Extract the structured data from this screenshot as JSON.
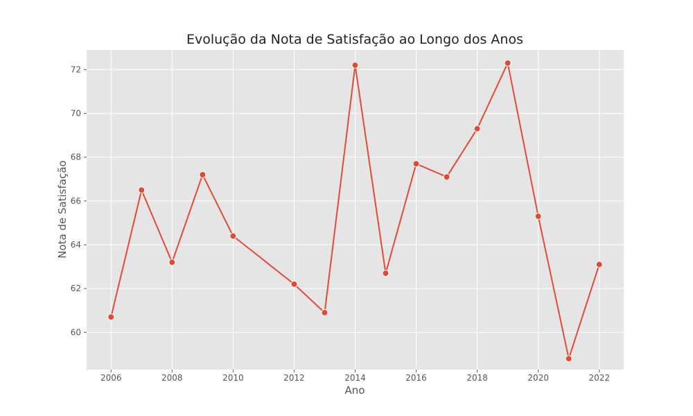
{
  "chart_data": {
    "type": "line",
    "title": "Evolução da Nota de Satisfação ao Longo dos Anos",
    "xlabel": "Ano",
    "ylabel": "Nota de Satisfação",
    "xlim": [
      2005.2,
      2022.8
    ],
    "ylim": [
      58.3,
      72.9
    ],
    "xticks": [
      2006,
      2008,
      2010,
      2012,
      2014,
      2016,
      2018,
      2020,
      2022
    ],
    "yticks": [
      60,
      62,
      64,
      66,
      68,
      70,
      72
    ],
    "grid": true,
    "series": [
      {
        "x": [
          2006,
          2007,
          2008,
          2009,
          2010,
          2012,
          2013,
          2014,
          2015,
          2016,
          2017,
          2018,
          2019,
          2020,
          2021,
          2022
        ],
        "values": [
          60.7,
          66.5,
          63.2,
          67.2,
          64.4,
          62.2,
          60.9,
          72.2,
          62.7,
          67.7,
          67.1,
          69.3,
          72.3,
          65.3,
          58.8,
          63.1
        ],
        "color": "#e24a33"
      }
    ],
    "colors": {
      "plot_background": "#e5e5e5",
      "grid": "#ffffff",
      "line": "#e24a33",
      "marker_edge": "#ffffff"
    }
  }
}
